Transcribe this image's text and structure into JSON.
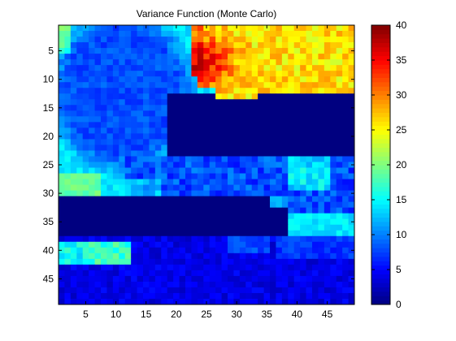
{
  "chart_data": {
    "type": "heatmap",
    "title": "Variance Function (Monte Carlo)",
    "xlabel": "",
    "ylabel": "",
    "grid_size": [
      49,
      49
    ],
    "x_ticks": [
      5,
      10,
      15,
      20,
      25,
      30,
      35,
      40,
      45
    ],
    "y_ticks": [
      5,
      10,
      15,
      20,
      25,
      30,
      35,
      40,
      45
    ],
    "xlim": [
      0.5,
      49.5
    ],
    "ylim": [
      0.5,
      49.5
    ],
    "y_direction": "reverse",
    "colormap": "jet",
    "clim": [
      0,
      40
    ],
    "colorbar_ticks": [
      0,
      5,
      10,
      15,
      20,
      25,
      30,
      35,
      40
    ],
    "regions": [
      {
        "name": "top-right hot zone",
        "approx_value": 26,
        "x": [
          23,
          49
        ],
        "y": [
          1,
          13
        ],
        "peak_value": 35,
        "peak_at": [
          25,
          7
        ]
      },
      {
        "name": "left bulb",
        "approx_value": 8,
        "x": [
          1,
          22
        ],
        "y": [
          1,
          30
        ],
        "edge_value": 14
      },
      {
        "name": "right channel",
        "approx_value": 0,
        "x": [
          19,
          49
        ],
        "y": [
          13,
          24
        ]
      },
      {
        "name": "middle band",
        "approx_value": 8,
        "x": [
          12,
          49
        ],
        "y": [
          24,
          33
        ]
      },
      {
        "name": "lower channel",
        "approx_value": 0,
        "x": [
          1,
          38
        ],
        "y": [
          31,
          38
        ]
      },
      {
        "name": "bottom-left strip",
        "approx_value": 15,
        "x": [
          1,
          12
        ],
        "y": [
          38,
          43
        ]
      },
      {
        "name": "bottom region",
        "approx_value": 4,
        "x": [
          1,
          49
        ],
        "y": [
          40,
          49
        ]
      }
    ]
  }
}
